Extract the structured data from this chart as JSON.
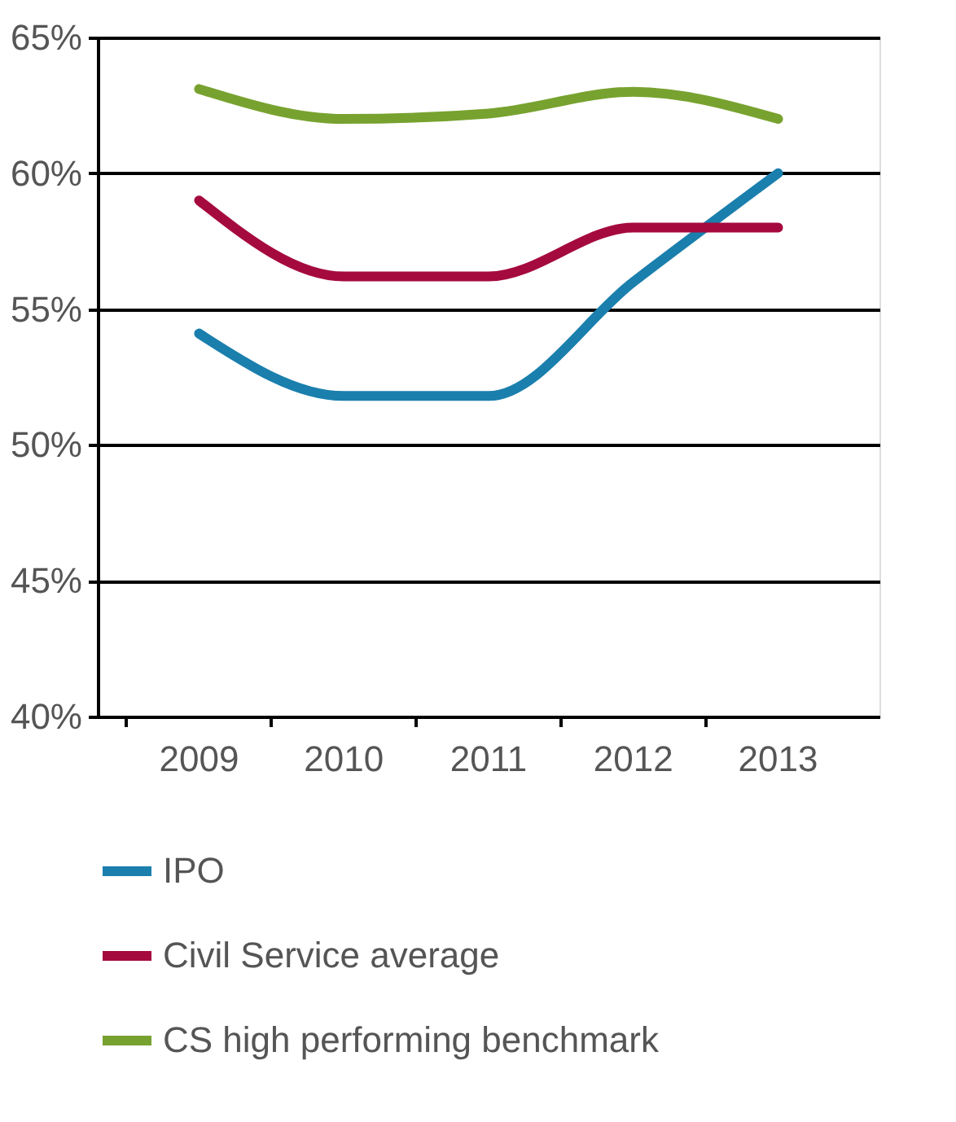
{
  "chart_data": {
    "type": "line",
    "categories": [
      "2009",
      "2010",
      "2011",
      "2012",
      "2013"
    ],
    "series": [
      {
        "name": "IPO",
        "color": "#1a7fad",
        "values": [
          54.1,
          51.8,
          51.8,
          56.0,
          60.0
        ]
      },
      {
        "name": "Civil Service average",
        "color": "#a50a3e",
        "values": [
          59.0,
          56.2,
          56.2,
          58.0,
          58.0
        ]
      },
      {
        "name": "CS high performing benchmark",
        "color": "#78a22f",
        "values": [
          63.1,
          62.0,
          62.2,
          63.0,
          62.0
        ]
      }
    ],
    "ylim": [
      40,
      65
    ],
    "yticks": [
      {
        "value": 40,
        "label": "40%"
      },
      {
        "value": 45,
        "label": "45%"
      },
      {
        "value": 50,
        "label": "50%"
      },
      {
        "value": 55,
        "label": "55%"
      },
      {
        "value": 60,
        "label": "60%"
      },
      {
        "value": 65,
        "label": "65%"
      }
    ],
    "grid": "y",
    "legend": "bottom",
    "marker": "none",
    "line_style": "solid"
  }
}
